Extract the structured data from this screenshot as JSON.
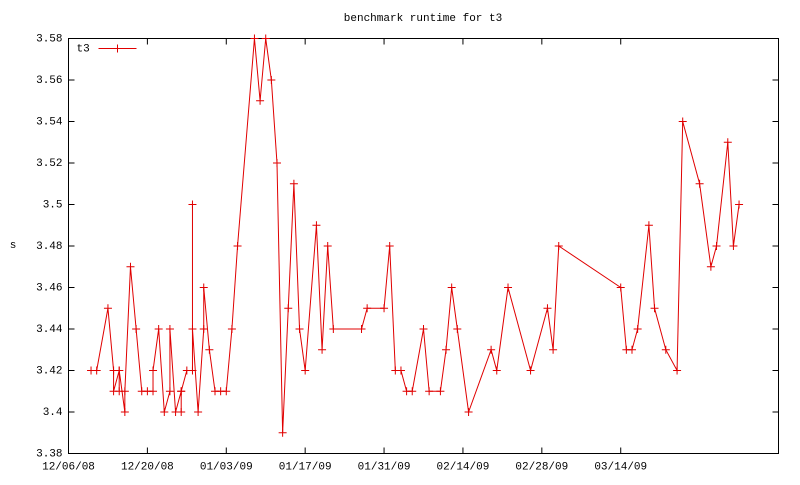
{
  "chart_data": {
    "type": "line",
    "title": "benchmark runtime for t3",
    "y_label": "s",
    "legend": "top-left",
    "grid": false,
    "xlim": [
      "2008-12-06",
      "2009-04-11"
    ],
    "xticks": [
      {
        "value": "2008-12-06",
        "label": "12/06/08"
      },
      {
        "value": "2008-12-20",
        "label": "12/20/08"
      },
      {
        "value": "2009-01-03",
        "label": "01/03/09"
      },
      {
        "value": "2009-01-17",
        "label": "01/17/09"
      },
      {
        "value": "2009-01-31",
        "label": "01/31/09"
      },
      {
        "value": "2009-02-14",
        "label": "02/14/09"
      },
      {
        "value": "2009-02-28",
        "label": "02/28/09"
      },
      {
        "value": "2009-03-14",
        "label": "03/14/09"
      }
    ],
    "ylim": [
      3.38,
      3.58
    ],
    "yticks": [
      3.38,
      3.4,
      3.42,
      3.44,
      3.46,
      3.48,
      3.5,
      3.52,
      3.54,
      3.56,
      3.58
    ],
    "x": [
      "2008-12-10",
      "2008-12-11",
      "2008-12-13",
      "2008-12-14",
      "2008-12-14",
      "2008-12-15",
      "2008-12-15",
      "2008-12-15",
      "2008-12-16",
      "2008-12-16",
      "2008-12-17",
      "2008-12-18",
      "2008-12-19",
      "2008-12-20",
      "2008-12-21",
      "2008-12-21",
      "2008-12-22",
      "2008-12-23",
      "2008-12-24",
      "2008-12-24",
      "2008-12-25",
      "2008-12-26",
      "2008-12-26",
      "2008-12-26",
      "2008-12-27",
      "2008-12-28",
      "2008-12-28",
      "2008-12-28",
      "2008-12-29",
      "2008-12-30",
      "2008-12-30",
      "2008-12-31",
      "2009-01-01",
      "2009-01-02",
      "2009-01-03",
      "2009-01-04",
      "2009-01-05",
      "2009-01-08",
      "2009-01-09",
      "2009-01-10",
      "2009-01-11",
      "2009-01-12",
      "2009-01-13",
      "2009-01-14",
      "2009-01-15",
      "2009-01-16",
      "2009-01-17",
      "2009-01-19",
      "2009-01-20",
      "2009-01-21",
      "2009-01-22",
      "2009-01-27",
      "2009-01-28",
      "2009-01-31",
      "2009-02-01",
      "2009-02-02",
      "2009-02-03",
      "2009-02-04",
      "2009-02-05",
      "2009-02-07",
      "2009-02-08",
      "2009-02-10",
      "2009-02-11",
      "2009-02-12",
      "2009-02-13",
      "2009-02-15",
      "2009-02-19",
      "2009-02-20",
      "2009-02-22",
      "2009-02-26",
      "2009-03-01",
      "2009-03-02",
      "2009-03-03",
      "2009-03-14",
      "2009-03-15",
      "2009-03-16",
      "2009-03-17",
      "2009-03-19",
      "2009-03-20",
      "2009-03-22",
      "2009-03-24",
      "2009-03-25",
      "2009-03-28",
      "2009-03-30",
      "2009-03-31",
      "2009-04-02",
      "2009-04-03",
      "2009-04-04"
    ],
    "series": [
      {
        "name": "t3",
        "color": "#e00000",
        "values": [
          3.42,
          3.42,
          3.45,
          3.42,
          3.41,
          3.42,
          3.41,
          3.42,
          3.4,
          3.41,
          3.47,
          3.44,
          3.41,
          3.41,
          3.41,
          3.42,
          3.44,
          3.4,
          3.41,
          3.44,
          3.4,
          3.41,
          3.4,
          3.41,
          3.42,
          3.42,
          3.5,
          3.44,
          3.4,
          3.44,
          3.46,
          3.43,
          3.41,
          3.41,
          3.41,
          3.44,
          3.48,
          3.58,
          3.55,
          3.58,
          3.56,
          3.52,
          3.39,
          3.45,
          3.51,
          3.44,
          3.42,
          3.49,
          3.43,
          3.48,
          3.44,
          3.44,
          3.45,
          3.45,
          3.48,
          3.42,
          3.42,
          3.41,
          3.41,
          3.44,
          3.41,
          3.41,
          3.43,
          3.46,
          3.44,
          3.4,
          3.43,
          3.42,
          3.46,
          3.42,
          3.45,
          3.43,
          3.48,
          3.46,
          3.43,
          3.43,
          3.44,
          3.49,
          3.45,
          3.43,
          3.42,
          3.54,
          3.51,
          3.47,
          3.48,
          3.53,
          3.48,
          3.5
        ]
      }
    ]
  }
}
